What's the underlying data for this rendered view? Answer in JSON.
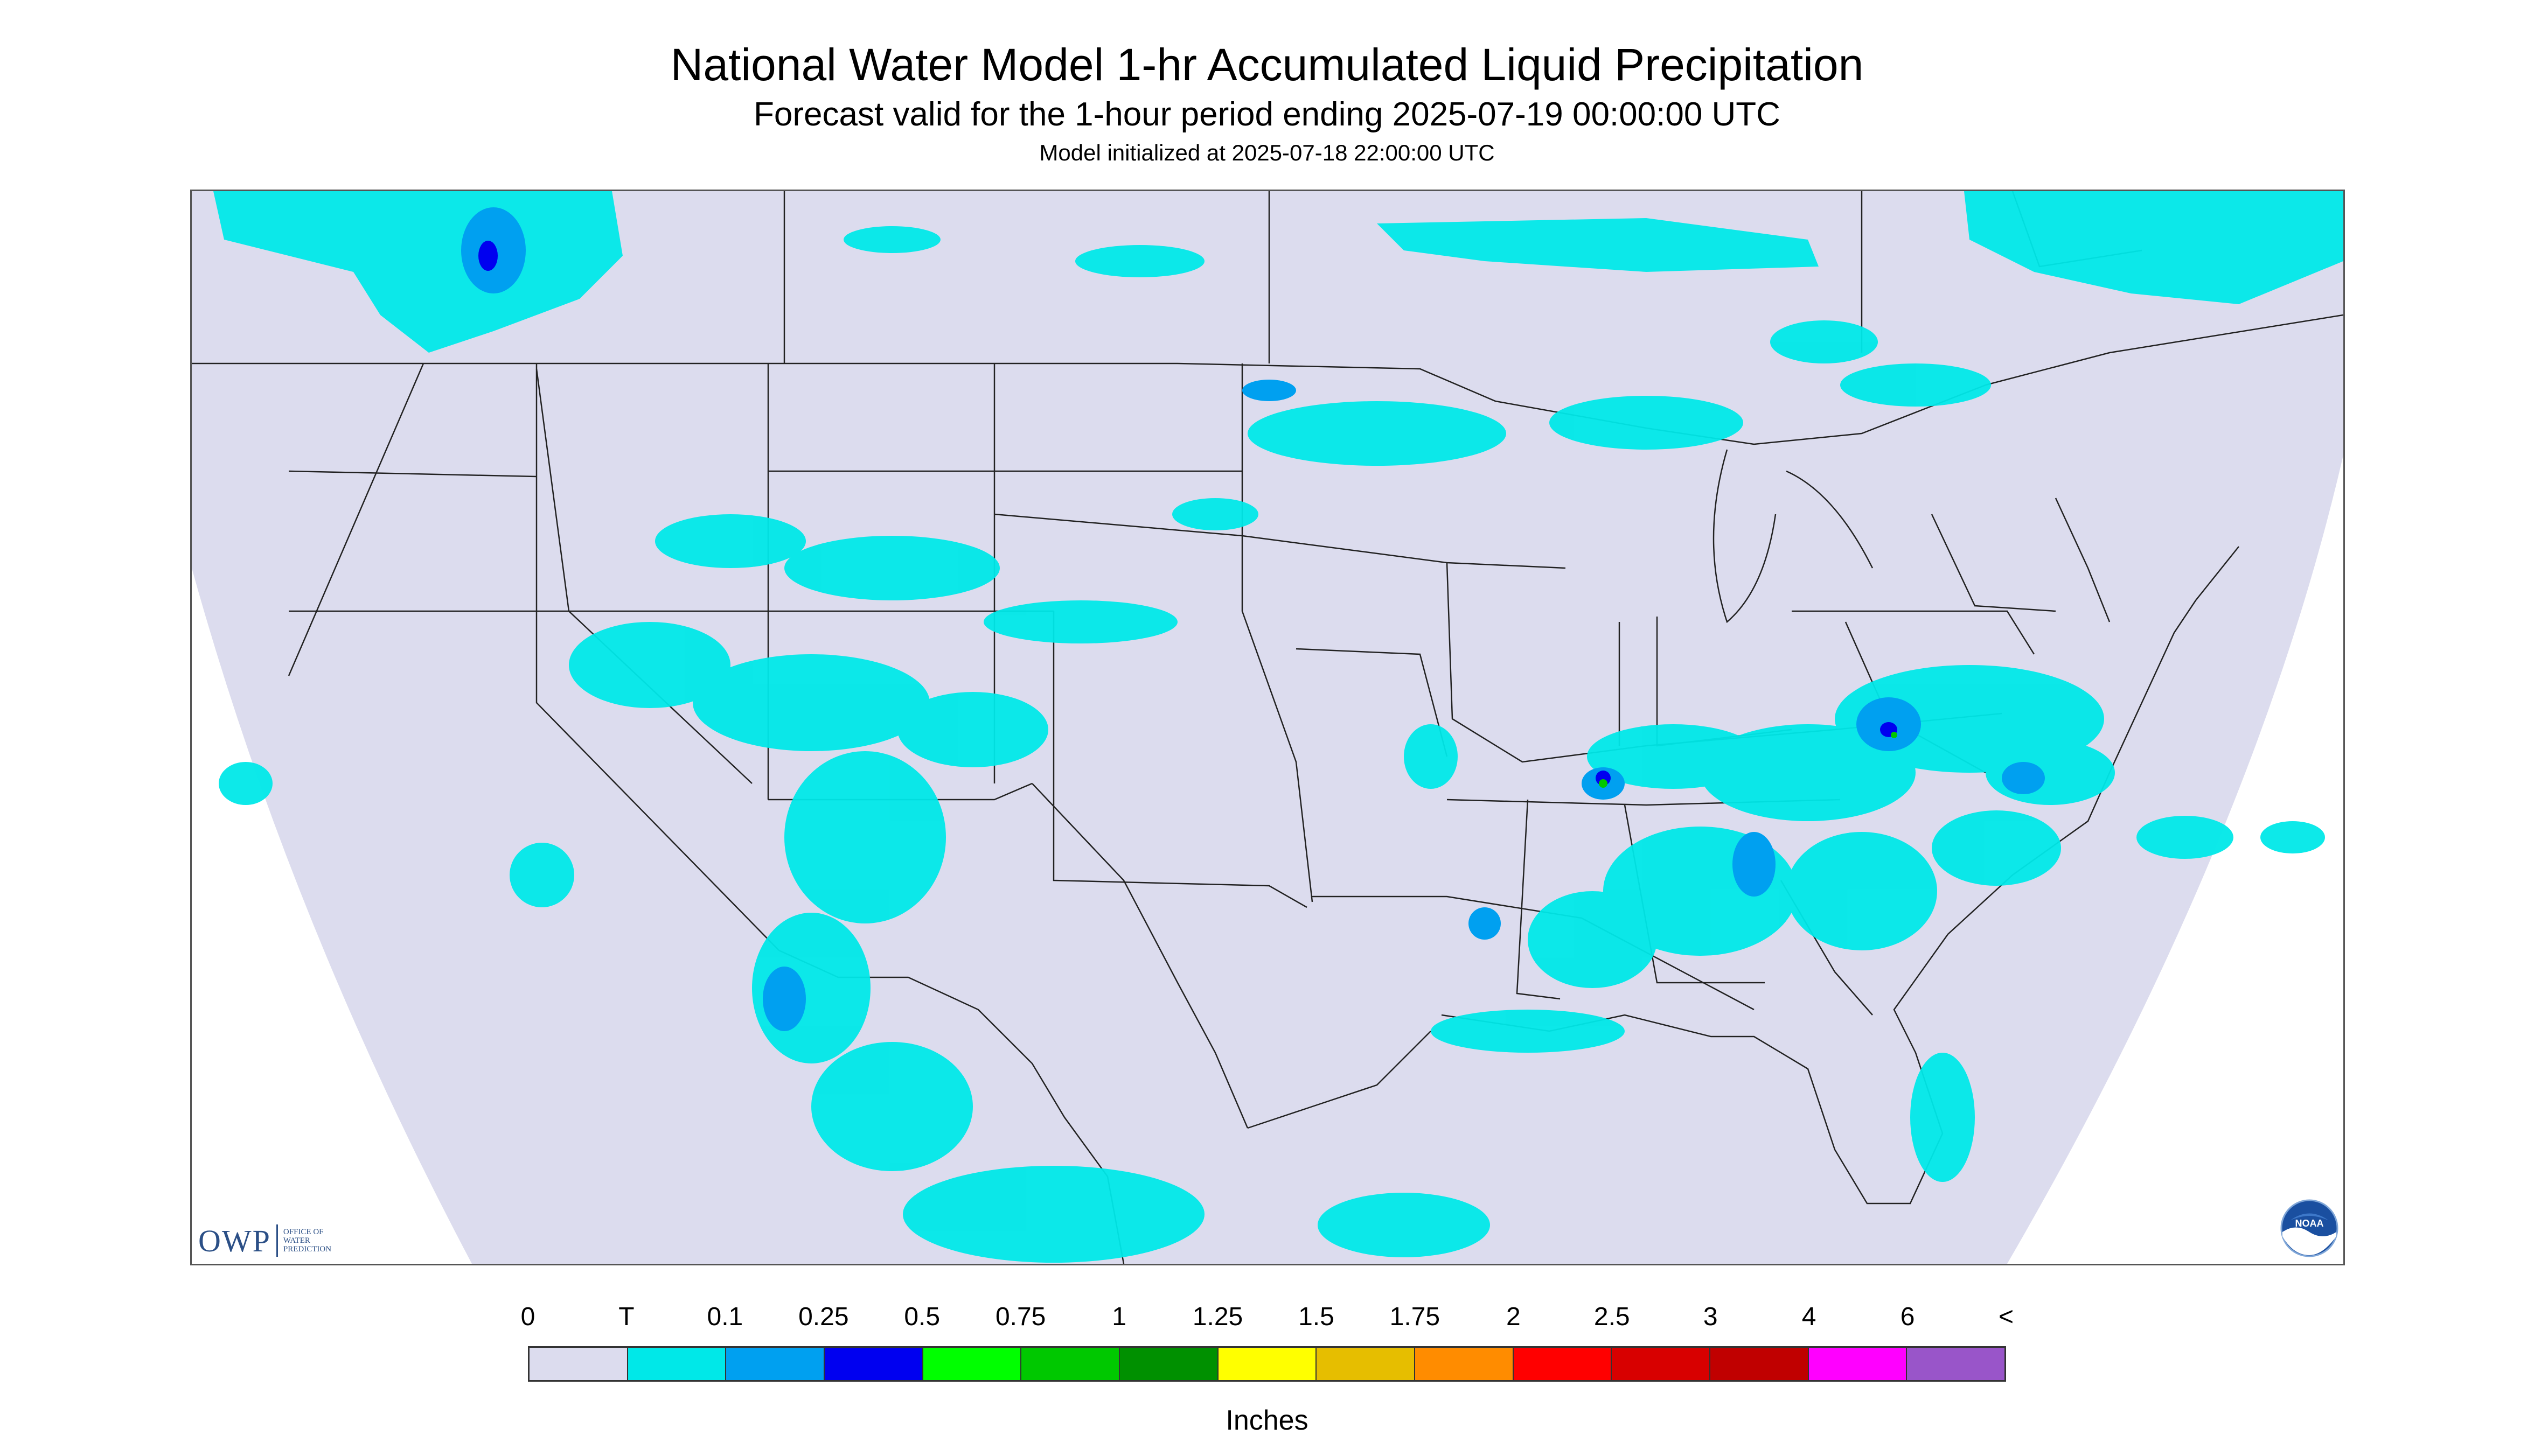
{
  "header": {
    "title": "National Water Model 1-hr Accumulated Liquid Precipitation",
    "subtitle": "Forecast valid for the 1-hour period ending 2025-07-19 00:00:00 UTC",
    "init": "Model initialized at 2025-07-18 22:00:00 UTC"
  },
  "logos": {
    "owp_big": "OWP",
    "owp_small": [
      "OFFICE OF",
      "WATER",
      "PREDICTION"
    ],
    "noaa": "NOAA"
  },
  "legend": {
    "labels": [
      "0",
      "T",
      "0.1",
      "0.25",
      "0.5",
      "0.75",
      "1",
      "1.25",
      "1.5",
      "1.75",
      "2",
      "2.5",
      "3",
      "4",
      "6",
      "<"
    ],
    "colors": [
      "#dcdcee",
      "#00e8e8",
      "#00a0f0",
      "#0000f0",
      "#00ff00",
      "#00c800",
      "#009000",
      "#ffff00",
      "#e6be00",
      "#ff8c00",
      "#ff0000",
      "#d80000",
      "#c00000",
      "#ff00ff",
      "#9955c9"
    ],
    "units": "Inches"
  },
  "colors": {
    "no_data_background": "#dcdcee",
    "outside_domain": "#ffffff",
    "boundary_lines": "#222222"
  }
}
